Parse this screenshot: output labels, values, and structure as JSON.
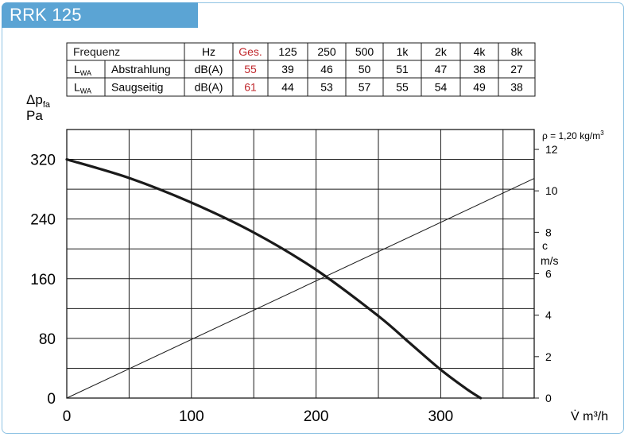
{
  "title": "RRK 125",
  "sound_table": {
    "header": {
      "label": "Frequenz",
      "unit": "Hz",
      "total": "Ges.",
      "bands": [
        "125",
        "250",
        "500",
        "1k",
        "2k",
        "4k",
        "8k"
      ]
    },
    "rows": [
      {
        "symbol": "L",
        "symbol_sub": "WA",
        "label": "Abstrahlung",
        "unit": "dB(A)",
        "total": "55",
        "values": [
          "39",
          "46",
          "50",
          "51",
          "47",
          "38",
          "27"
        ]
      },
      {
        "symbol": "L",
        "symbol_sub": "WA",
        "label": "Saugseitig",
        "unit": "dB(A)",
        "total": "61",
        "values": [
          "44",
          "53",
          "57",
          "55",
          "54",
          "49",
          "38"
        ]
      }
    ]
  },
  "colors": {
    "accent": "#5ba4d4",
    "frame": "#8fc3e3",
    "total_column": "#c0282d",
    "curve": "#1a1a1a"
  },
  "chart_data": {
    "type": "line",
    "ylabel": {
      "symbol": "Δp",
      "sub": "fa",
      "unit": "Pa"
    },
    "xlabel": "V̇ m³/h",
    "secondary_ylabel": {
      "symbol": "c",
      "unit": "m/s"
    },
    "density_note": {
      "prefix": "ρ = 1,20 kg/m",
      "sup": "3"
    },
    "xlim": [
      0,
      375
    ],
    "ylim": [
      0,
      360
    ],
    "secondary_ylim": [
      0,
      12.96
    ],
    "x_ticks": [
      0,
      100,
      200,
      300
    ],
    "y_ticks": [
      0,
      80,
      160,
      240,
      320
    ],
    "secondary_y_ticks": [
      0,
      2,
      4,
      6,
      8,
      10,
      12
    ],
    "grid": true,
    "series": [
      {
        "axis": "primary",
        "x": [
          0,
          50,
          100,
          150,
          200,
          250,
          275,
          300,
          320,
          332
        ],
        "y": [
          320,
          295,
          262,
          222,
          172,
          110,
          74,
          38,
          13,
          0
        ]
      },
      {
        "axis": "secondary",
        "x": [
          0,
          375
        ],
        "y": [
          0,
          10.6
        ]
      }
    ]
  }
}
